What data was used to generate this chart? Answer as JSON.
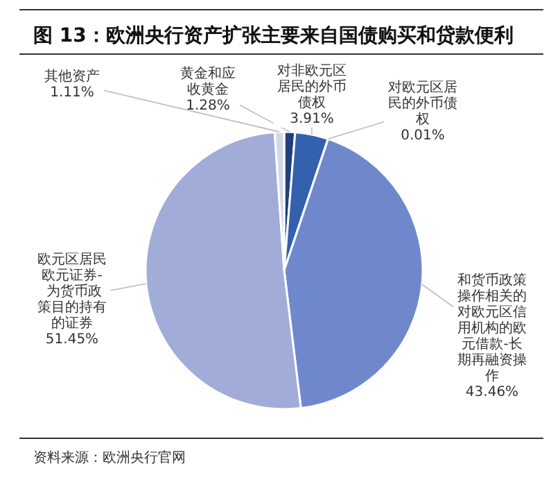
{
  "chart_data": {
    "type": "pie",
    "title": "图 13：欧洲央行资产扩张主要来自国债购买和贷款便利",
    "categories": [
      "黄金和应收黄金",
      "对非欧元区居民的外币债权",
      "对欧元区居民的外币债权",
      "和货币政策操作相关的对欧元区信用机构的欧元借款-长期再融资操作",
      "欧元区居民欧元证券- 为货币政策目的持有的证券",
      "其他资产"
    ],
    "values": [
      1.28,
      3.91,
      0.01,
      43.46,
      51.45,
      1.11
    ],
    "colors": [
      "#1f3f7f",
      "#3461ad",
      "#4a72bd",
      "#6f88cc",
      "#a2acd8",
      "#d3d7ea"
    ],
    "value_labels": [
      "1.28%",
      "3.91%",
      "0.01%",
      "43.46%",
      "51.45%",
      "1.11%"
    ],
    "annotations": [
      "资料来源：欧洲央行官网"
    ]
  }
}
